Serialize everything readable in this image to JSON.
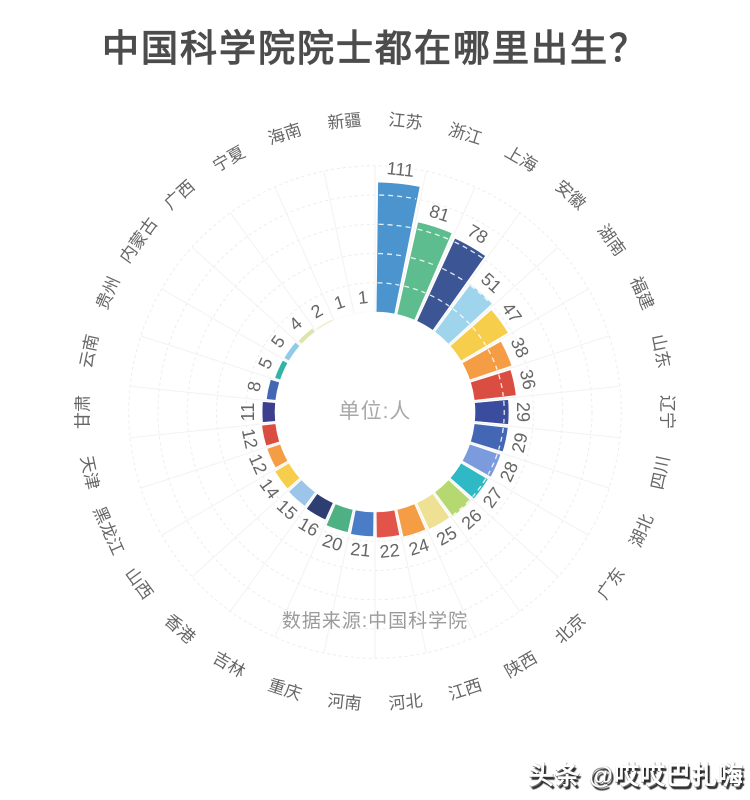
{
  "watermark": "头条 @哎哎巴扎嗨",
  "chart_data": {
    "type": "bar",
    "polar": true,
    "title": "中国科学院院士都在哪里出生？",
    "unit_label": "单位:人",
    "source": "数据来源:中国科学院",
    "order": "values descending clockwise from top",
    "grid": true,
    "grid_values": [
      25,
      50,
      75,
      100
    ],
    "categories": [
      "江苏",
      "浙江",
      "上海",
      "安徽",
      "湖南",
      "福建",
      "山东",
      "辽宁",
      "四川",
      "湖北",
      "广东",
      "北京",
      "陕西",
      "江西",
      "河北",
      "河南",
      "重庆",
      "吉林",
      "香港",
      "山西",
      "黑龙江",
      "天津",
      "甘肃",
      "云南",
      "贵州",
      "内蒙古",
      "广西",
      "宁夏",
      "海南",
      "新疆"
    ],
    "values": [
      111,
      81,
      78,
      51,
      47,
      38,
      36,
      29,
      29,
      28,
      27,
      26,
      25,
      24,
      22,
      21,
      20,
      16,
      15,
      14,
      12,
      12,
      11,
      8,
      5,
      5,
      4,
      2,
      1,
      1
    ],
    "colors": [
      "#4C94CE",
      "#5EBD8E",
      "#3C5695",
      "#9FD5EC",
      "#F6CE4C",
      "#F49D45",
      "#DA4E42",
      "#3A4C9D",
      "#4467B5",
      "#7C9BDC",
      "#2FB9C4",
      "#B5D970",
      "#EFE194",
      "#F49D45",
      "#E25349",
      "#4A7CC7",
      "#4EB183",
      "#2E3D72",
      "#9CC5E9",
      "#F6CE4C",
      "#F49D45",
      "#DA4E42",
      "#3B3F8D",
      "#4467B5",
      "#32B3A6",
      "#8FCBE8",
      "#DCE6AC",
      "#F2EFD2",
      "#F7F7EE",
      "#F7F7F2"
    ]
  }
}
